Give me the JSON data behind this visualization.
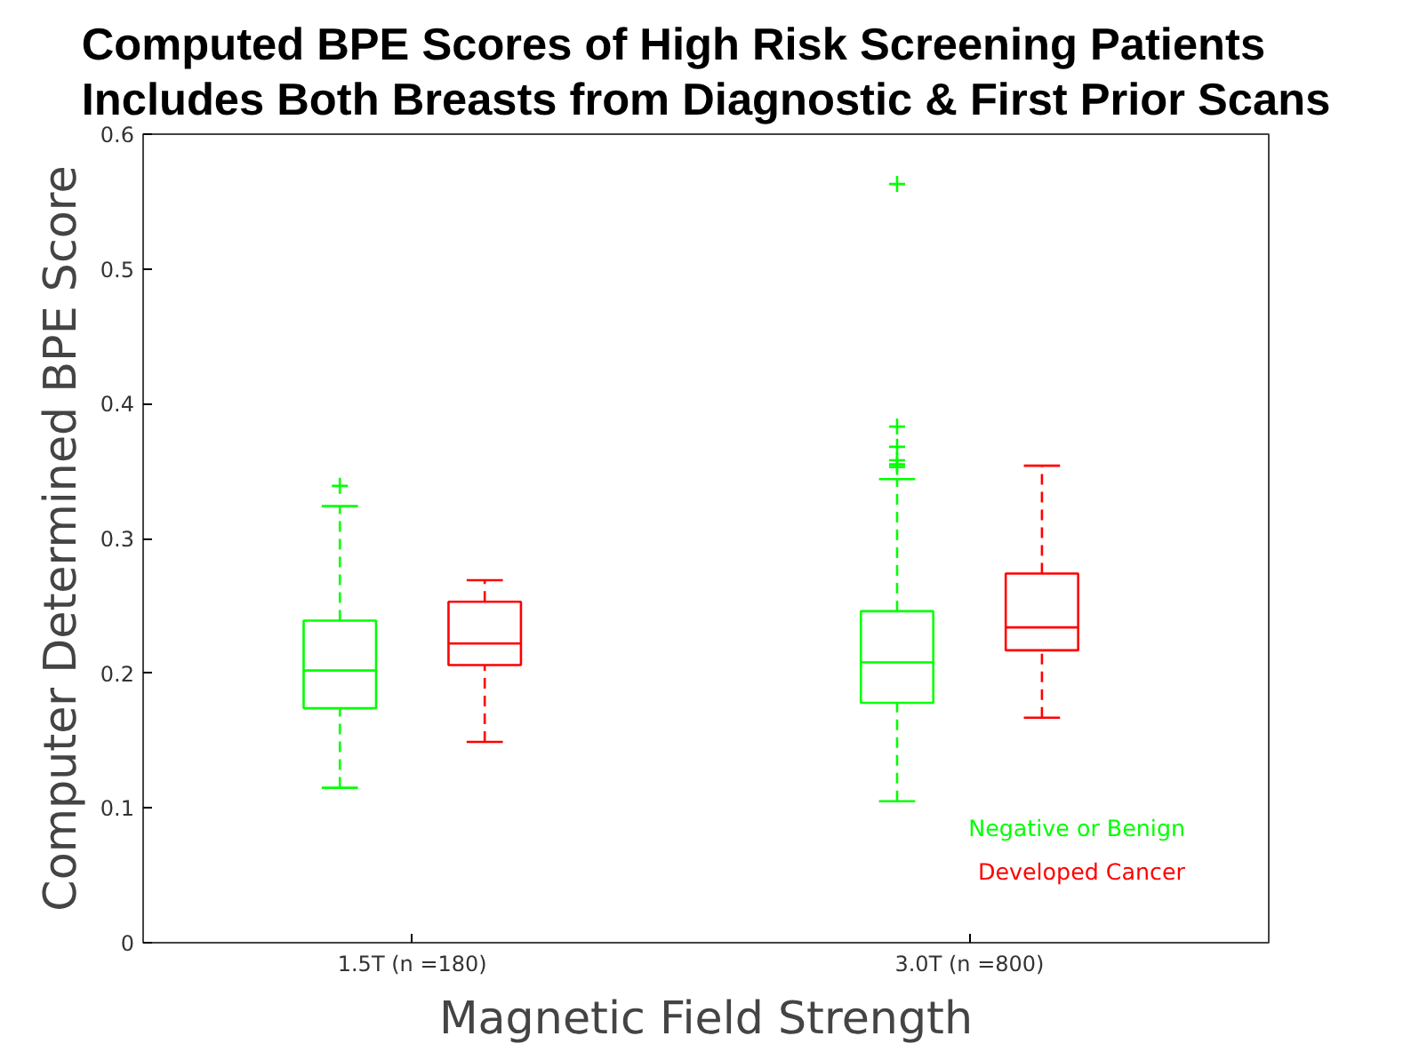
{
  "chart_data": {
    "type": "box",
    "title": "Computed BPE Scores of High Risk Screening Patients\nIncludes Both Breasts from Diagnostic & First Prior Scans",
    "xlabel": "Magnetic Field Strength",
    "ylabel": "Computer Determined BPE Score",
    "categories": [
      "1.5T (n =180)",
      "3.0T (n =800)"
    ],
    "series": [
      {
        "name": "Negative or Benign",
        "color": "#00ff00",
        "boxes": [
          {
            "low": 0.115,
            "q1": 0.174,
            "median": 0.202,
            "q3": 0.239,
            "high": 0.324,
            "outliers": [
              0.339
            ]
          },
          {
            "low": 0.105,
            "q1": 0.178,
            "median": 0.208,
            "q3": 0.246,
            "high": 0.344,
            "outliers": [
              0.563,
              0.383,
              0.368,
              0.358,
              0.355,
              0.353
            ]
          }
        ]
      },
      {
        "name": "Developed Cancer",
        "color": "#ff0000",
        "boxes": [
          {
            "low": 0.149,
            "q1": 0.206,
            "median": 0.222,
            "q3": 0.253,
            "high": 0.269
          },
          {
            "low": 0.167,
            "q1": 0.217,
            "median": 0.234,
            "q3": 0.274,
            "high": 0.354
          }
        ]
      }
    ],
    "ylim": [
      0,
      0.6
    ],
    "yticks": [
      0,
      0.1,
      0.2,
      0.3,
      0.4,
      0.5,
      0.6
    ],
    "grid": false,
    "legend": "bottom right",
    "marker": "cross",
    "line_style": "dashed"
  }
}
